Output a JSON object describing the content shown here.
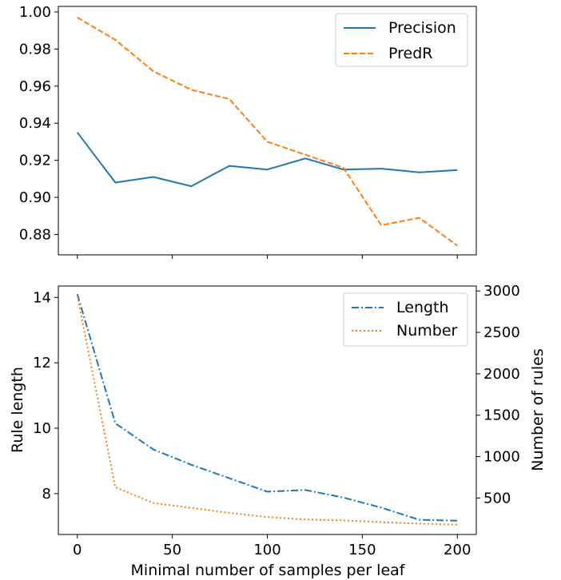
{
  "chart_data": [
    {
      "type": "line",
      "x": [
        0,
        20,
        40,
        60,
        80,
        100,
        120,
        140,
        160,
        180,
        200
      ],
      "series": [
        {
          "name": "Precision",
          "values": [
            0.935,
            0.908,
            0.911,
            0.906,
            0.917,
            0.915,
            0.921,
            0.915,
            0.9155,
            0.9135,
            0.9147
          ],
          "color": "#1f77b4",
          "style": "solid"
        },
        {
          "name": "PredR",
          "values": [
            0.997,
            0.985,
            0.968,
            0.958,
            0.953,
            0.93,
            0.923,
            0.916,
            0.885,
            0.889,
            0.874
          ],
          "color": "#ff7f0e",
          "style": "dashed"
        }
      ],
      "xlim": [
        -10,
        210
      ],
      "ylim": [
        0.869,
        1.003
      ],
      "xticks": [
        0,
        50,
        100,
        150,
        200
      ],
      "yticks": [
        0.88,
        0.9,
        0.92,
        0.94,
        0.96,
        0.98,
        1.0
      ],
      "ytick_labels": [
        "0.88",
        "0.90",
        "0.92",
        "0.94",
        "0.96",
        "0.98",
        "1.00"
      ],
      "xlabel": "",
      "ylabel": "",
      "legend": "top-right",
      "grid": false
    },
    {
      "type": "line",
      "x": [
        0,
        20,
        40,
        60,
        80,
        100,
        120,
        140,
        160,
        180,
        200
      ],
      "series": [
        {
          "name": "Length",
          "axis": "left",
          "values": [
            14.1,
            10.15,
            9.35,
            8.88,
            8.47,
            8.06,
            8.11,
            7.88,
            7.57,
            7.2,
            7.17
          ],
          "color": "#1f77b4",
          "style": "dashdot"
        },
        {
          "name": "Number",
          "axis": "right",
          "values": [
            2940,
            630,
            440,
            380,
            320,
            270,
            240,
            230,
            210,
            190,
            180
          ],
          "color": "#ff7f0e",
          "style": "dotted"
        }
      ],
      "xlim": [
        -10,
        210
      ],
      "ylim_left": [
        6.75,
        14.35
      ],
      "ylim_right": [
        60,
        3060
      ],
      "xticks": [
        0,
        50,
        100,
        150,
        200
      ],
      "xtick_labels": [
        "0",
        "50",
        "100",
        "150",
        "200"
      ],
      "yticks_left": [
        8,
        10,
        12,
        14
      ],
      "yticks_right": [
        500,
        1000,
        1500,
        2000,
        2500,
        3000
      ],
      "xlabel": "Minimal number of samples per leaf",
      "ylabel": "Rule length",
      "ylabel_right": "Number of rules",
      "legend": "top-right",
      "grid": false
    }
  ]
}
